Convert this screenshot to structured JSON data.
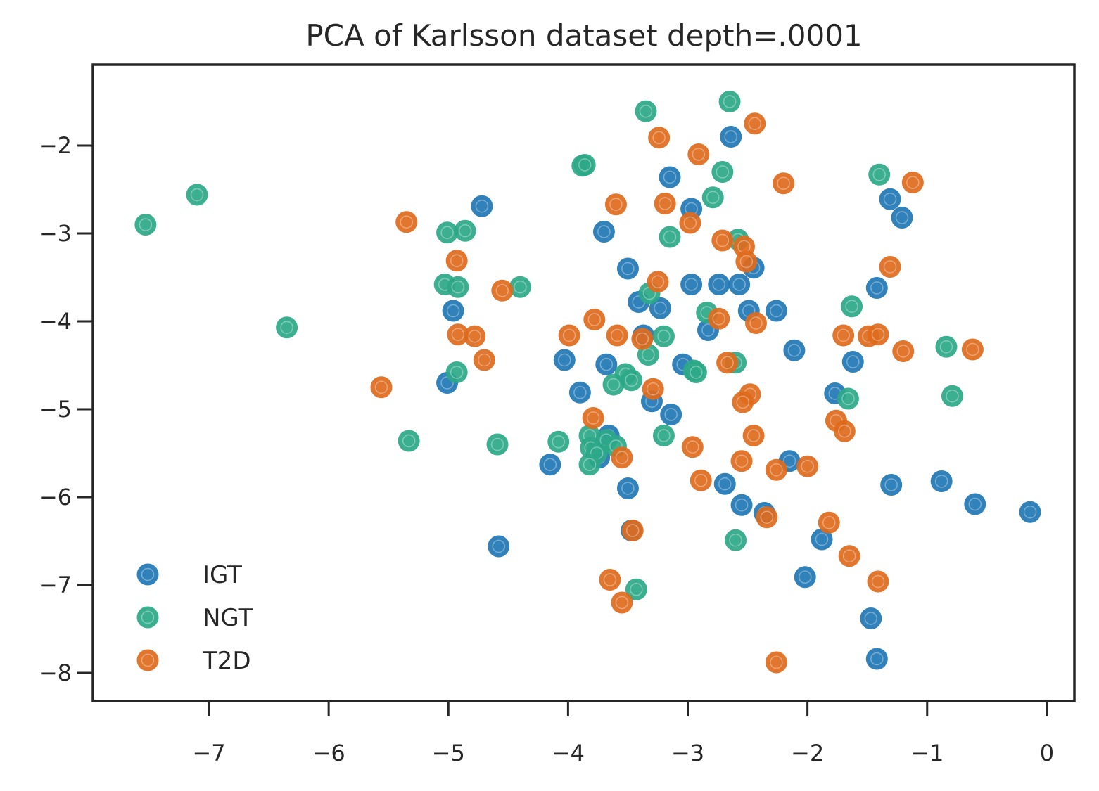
{
  "chart_data": {
    "type": "scatter",
    "title": "PCA of Karlsson dataset depth=.0001",
    "xlabel": "",
    "ylabel": "",
    "xlim": [
      -7.97,
      0.23
    ],
    "ylim": [
      -8.32,
      -1.08
    ],
    "xticks": [
      -7,
      -6,
      -5,
      -4,
      -3,
      -2,
      -1,
      0
    ],
    "xtick_labels": [
      "−7",
      "−6",
      "−5",
      "−4",
      "−3",
      "−2",
      "−1",
      "0"
    ],
    "yticks": [
      -2,
      -3,
      -4,
      -5,
      -6,
      -7,
      -8
    ],
    "ytick_labels": [
      "−2",
      "−3",
      "−4",
      "−5",
      "−6",
      "−7",
      "−8"
    ],
    "grid": false,
    "legend_position": "lower-left",
    "series": [
      {
        "name": "IGT",
        "color": "#1f77b4",
        "points": [
          [
            -2.64,
            -1.9
          ],
          [
            -3.15,
            -2.36
          ],
          [
            -2.97,
            -2.72
          ],
          [
            -1.31,
            -2.61
          ],
          [
            -1.21,
            -2.82
          ],
          [
            -4.72,
            -2.69
          ],
          [
            -3.7,
            -2.98
          ],
          [
            -3.5,
            -3.4
          ],
          [
            -2.97,
            -3.58
          ],
          [
            -2.74,
            -3.58
          ],
          [
            -2.57,
            -3.58
          ],
          [
            -2.45,
            -3.39
          ],
          [
            -1.42,
            -3.62
          ],
          [
            -3.41,
            -3.78
          ],
          [
            -3.23,
            -3.85
          ],
          [
            -2.49,
            -3.88
          ],
          [
            -2.26,
            -3.88
          ],
          [
            -4.96,
            -3.88
          ],
          [
            -2.83,
            -4.1
          ],
          [
            -3.37,
            -4.16
          ],
          [
            -2.11,
            -4.33
          ],
          [
            -1.62,
            -4.46
          ],
          [
            -4.03,
            -4.44
          ],
          [
            -3.68,
            -4.49
          ],
          [
            -3.04,
            -4.49
          ],
          [
            -5.01,
            -4.7
          ],
          [
            -3.9,
            -4.81
          ],
          [
            -3.3,
            -4.91
          ],
          [
            -3.14,
            -5.06
          ],
          [
            -1.77,
            -4.82
          ],
          [
            -3.66,
            -5.3
          ],
          [
            -3.74,
            -5.55
          ],
          [
            -2.15,
            -5.59
          ],
          [
            -4.15,
            -5.63
          ],
          [
            -3.5,
            -5.9
          ],
          [
            -2.69,
            -5.85
          ],
          [
            -2.55,
            -6.09
          ],
          [
            -2.36,
            -6.18
          ],
          [
            -1.3,
            -5.86
          ],
          [
            -0.88,
            -5.82
          ],
          [
            -0.6,
            -6.08
          ],
          [
            -0.14,
            -6.17
          ],
          [
            -3.47,
            -6.38
          ],
          [
            -1.88,
            -6.48
          ],
          [
            -2.02,
            -6.91
          ],
          [
            -4.58,
            -6.56
          ],
          [
            -1.47,
            -7.38
          ],
          [
            -1.42,
            -7.84
          ]
        ]
      },
      {
        "name": "NGT",
        "color": "#2ca888",
        "points": [
          [
            -2.65,
            -1.5
          ],
          [
            -3.35,
            -1.61
          ],
          [
            -3.88,
            -2.23
          ],
          [
            -3.86,
            -2.22
          ],
          [
            -2.71,
            -2.3
          ],
          [
            -1.4,
            -2.33
          ],
          [
            -7.1,
            -2.56
          ],
          [
            -7.53,
            -2.9
          ],
          [
            -2.79,
            -2.59
          ],
          [
            -5.01,
            -2.99
          ],
          [
            -4.86,
            -2.97
          ],
          [
            -3.15,
            -3.04
          ],
          [
            -2.58,
            -3.07
          ],
          [
            -5.03,
            -3.58
          ],
          [
            -4.92,
            -3.61
          ],
          [
            -4.4,
            -3.61
          ],
          [
            -3.32,
            -3.68
          ],
          [
            -1.63,
            -3.83
          ],
          [
            -2.84,
            -3.9
          ],
          [
            -6.35,
            -4.07
          ],
          [
            -3.2,
            -4.17
          ],
          [
            -3.33,
            -4.38
          ],
          [
            -0.84,
            -4.29
          ],
          [
            -2.6,
            -4.47
          ],
          [
            -4.93,
            -4.58
          ],
          [
            -2.95,
            -4.56
          ],
          [
            -2.93,
            -4.58
          ],
          [
            -3.52,
            -4.6
          ],
          [
            -3.47,
            -4.67
          ],
          [
            -3.62,
            -4.72
          ],
          [
            -1.66,
            -4.88
          ],
          [
            -0.79,
            -4.85
          ],
          [
            -3.82,
            -5.3
          ],
          [
            -3.68,
            -5.35
          ],
          [
            -3.2,
            -5.3
          ],
          [
            -5.33,
            -5.36
          ],
          [
            -4.59,
            -5.4
          ],
          [
            -4.08,
            -5.37
          ],
          [
            -3.81,
            -5.44
          ],
          [
            -3.6,
            -5.42
          ],
          [
            -3.76,
            -5.5
          ],
          [
            -3.82,
            -5.63
          ],
          [
            -2.6,
            -6.49
          ],
          [
            -3.43,
            -7.05
          ]
        ]
      },
      {
        "name": "T2D",
        "color": "#de6a1c",
        "points": [
          [
            -2.44,
            -1.75
          ],
          [
            -3.24,
            -1.91
          ],
          [
            -2.91,
            -2.1
          ],
          [
            -2.2,
            -2.43
          ],
          [
            -1.12,
            -2.42
          ],
          [
            -3.6,
            -2.67
          ],
          [
            -3.19,
            -2.66
          ],
          [
            -2.98,
            -2.88
          ],
          [
            -5.35,
            -2.87
          ],
          [
            -2.71,
            -3.08
          ],
          [
            -2.53,
            -3.15
          ],
          [
            -2.51,
            -3.32
          ],
          [
            -1.31,
            -3.38
          ],
          [
            -4.93,
            -3.31
          ],
          [
            -3.25,
            -3.55
          ],
          [
            -4.55,
            -3.65
          ],
          [
            -2.74,
            -3.97
          ],
          [
            -3.78,
            -3.98
          ],
          [
            -2.43,
            -4.02
          ],
          [
            -3.99,
            -4.16
          ],
          [
            -3.59,
            -4.16
          ],
          [
            -3.38,
            -4.2
          ],
          [
            -4.92,
            -4.15
          ],
          [
            -4.78,
            -4.17
          ],
          [
            -1.7,
            -4.16
          ],
          [
            -1.49,
            -4.17
          ],
          [
            -1.41,
            -4.15
          ],
          [
            -1.2,
            -4.34
          ],
          [
            -0.62,
            -4.32
          ],
          [
            -4.7,
            -4.44
          ],
          [
            -2.67,
            -4.47
          ],
          [
            -3.29,
            -4.77
          ],
          [
            -2.48,
            -4.83
          ],
          [
            -2.54,
            -4.92
          ],
          [
            -5.56,
            -4.75
          ],
          [
            -3.79,
            -5.1
          ],
          [
            -1.76,
            -5.13
          ],
          [
            -1.69,
            -5.25
          ],
          [
            -2.45,
            -5.3
          ],
          [
            -2.96,
            -5.43
          ],
          [
            -3.55,
            -5.55
          ],
          [
            -2.55,
            -5.59
          ],
          [
            -2.26,
            -5.69
          ],
          [
            -2.0,
            -5.65
          ],
          [
            -2.89,
            -5.81
          ],
          [
            -3.46,
            -6.38
          ],
          [
            -2.34,
            -6.23
          ],
          [
            -1.82,
            -6.29
          ],
          [
            -1.65,
            -6.67
          ],
          [
            -1.41,
            -6.96
          ],
          [
            -3.65,
            -6.94
          ],
          [
            -3.55,
            -7.2
          ],
          [
            -2.26,
            -7.88
          ]
        ]
      }
    ]
  }
}
